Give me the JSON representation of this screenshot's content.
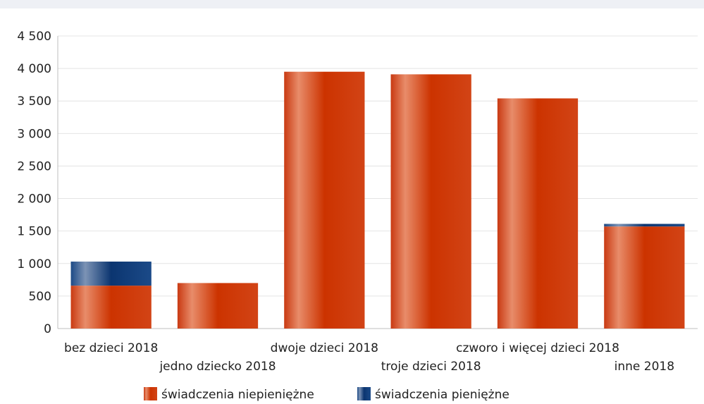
{
  "chart_data": {
    "type": "bar",
    "stacked": true,
    "title": "",
    "xlabel": "",
    "ylabel": "",
    "categories": [
      "bez dzieci 2018",
      "jedno dziecko 2018",
      "dwoje dzieci 2018",
      "troje dzieci 2018",
      "czworo i więcej dzieci 2018",
      "inne 2018"
    ],
    "series": [
      {
        "name": "świadczenia niepieniężne",
        "color": "#cc3300",
        "values": [
          660,
          700,
          3950,
          3910,
          3540,
          1570
        ]
      },
      {
        "name": "świadczenia pieniężne",
        "color": "#0b3570",
        "values": [
          370,
          0,
          0,
          0,
          0,
          40
        ]
      }
    ],
    "ylim": [
      0,
      4500
    ],
    "yticks": [
      0,
      500,
      1000,
      1500,
      2000,
      2500,
      3000,
      3500,
      4000,
      4500
    ],
    "ytick_labels": [
      "0",
      "500",
      "1 000",
      "1 500",
      "2 000",
      "2 500",
      "3 000",
      "3 500",
      "4 000",
      "4 500"
    ],
    "grid": true,
    "legend_position": "bottom"
  }
}
